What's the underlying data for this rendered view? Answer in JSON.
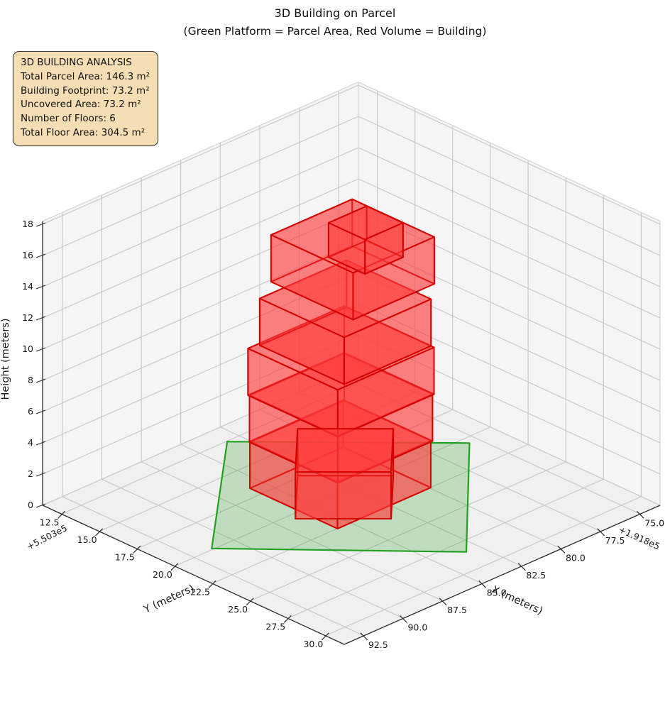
{
  "title": {
    "line1": "3D Building on Parcel",
    "line2": "(Green Platform = Parcel Area, Red Volume = Building)"
  },
  "info_box": {
    "title": "3D BUILDING ANALYSIS",
    "lines": [
      "Total Parcel Area: 146.3 m²",
      "Building Footprint: 73.2 m²",
      "Uncovered Area: 73.2 m²",
      "Number of Floors: 6",
      "Total Floor Area: 304.5 m²"
    ],
    "bg_color": "#f5deb3",
    "border_color": "#3c3c3c",
    "text_color": "#111111"
  },
  "chart_data": {
    "type": "3d-building-plot",
    "title": "3D Building on Parcel",
    "subtitle": "(Green Platform = Parcel Area, Red Volume = Building)",
    "legend_note": "Green Platform = Parcel Area, Red Volume = Building",
    "stats": {
      "total_parcel_area_m2": 146.3,
      "building_footprint_m2": 73.2,
      "uncovered_area_m2": 73.2,
      "number_of_floors": 6,
      "total_floor_area_m2": 304.5
    },
    "axes": {
      "x": {
        "label": "X (meters)",
        "tick_values": [
          75.0,
          77.5,
          80.0,
          82.5,
          85.0,
          87.5,
          90.0,
          92.5
        ],
        "tick_labels": [
          "75.0",
          "77.5",
          "80.0",
          "82.5",
          "85.0",
          "87.5",
          "90.0",
          "92.5"
        ],
        "offset_text": "+1.918e5",
        "range": [
          73.75,
          93.75
        ]
      },
      "y": {
        "label": "Y (meters)",
        "tick_values": [
          12.5,
          15.0,
          17.5,
          20.0,
          22.5,
          25.0,
          27.5,
          30.0
        ],
        "tick_labels": [
          "12.5",
          "15.0",
          "17.5",
          "20.0",
          "22.5",
          "25.0",
          "27.5",
          "30.0"
        ],
        "offset_text": "+5.503e5",
        "range": [
          11.25,
          31.25
        ]
      },
      "z": {
        "label": "Height (meters)",
        "tick_values": [
          0,
          2,
          4,
          6,
          8,
          10,
          12,
          14,
          16,
          18
        ],
        "tick_labels": [
          "0",
          "2",
          "4",
          "6",
          "8",
          "10",
          "12",
          "14",
          "16",
          "18"
        ],
        "range": [
          0,
          18.2
        ]
      }
    },
    "parcel": {
      "name": "parcel-platform",
      "z": 0,
      "polygon_xy": [
        [
          83.3,
          12.55
        ],
        [
          75.55,
          20.5
        ],
        [
          83.3,
          28.4
        ],
        [
          91.3,
          19.9
        ]
      ],
      "fill": "#2ca02c",
      "fill_alpha": 0.25,
      "edge": "#22a022",
      "edge_width": 2.2
    },
    "building": {
      "fill": "#ff3c3c",
      "fill_alpha": 0.4,
      "edge": "#d40000",
      "edge_alpha": 0.92,
      "edge_width": 2,
      "boxes": [
        {
          "name": "floor-1",
          "z0": 0,
          "z1": 3,
          "footprint": [
            [
              85.84,
              22.52
            ],
            [
              85.84,
              16.71
            ],
            [
              79.93,
              16.71
            ],
            [
              79.93,
              22.52
            ]
          ]
        },
        {
          "name": "floor-2",
          "z0": 3,
          "z1": 6,
          "footprint": [
            [
              85.9,
              22.6
            ],
            [
              85.9,
              16.75
            ],
            [
              79.9,
              16.75
            ],
            [
              79.9,
              22.6
            ]
          ]
        },
        {
          "name": "floor-3",
          "z0": 6,
          "z1": 9,
          "footprint": [
            [
              85.95,
              22.65
            ],
            [
              85.95,
              16.7
            ],
            [
              79.85,
              16.7
            ],
            [
              79.85,
              22.65
            ]
          ]
        },
        {
          "name": "floor-4",
          "z0": 9,
          "z1": 12,
          "footprint": [
            [
              85.35,
              22.45
            ],
            [
              85.35,
              16.85
            ],
            [
              79.85,
              16.85
            ],
            [
              79.85,
              22.45
            ]
          ]
        },
        {
          "name": "floor-5",
          "z0": 12,
          "z1": 15,
          "footprint": [
            [
              83.81,
              21.43
            ],
            [
              83.81,
              15.99
            ],
            [
              78.67,
              15.99
            ],
            [
              78.67,
              21.43
            ]
          ]
        },
        {
          "name": "ground-annex",
          "z0": 0,
          "z1": 3,
          "footprint": [
            [
              86.51,
              20.43
            ],
            [
              83.41,
              17.33
            ],
            [
              80.31,
              20.43
            ],
            [
              83.41,
              23.53
            ]
          ]
        },
        {
          "name": "floor-6-penthouse",
          "z0": 15,
          "z1": 17.2,
          "footprint": [
            [
              83.51,
              21.9
            ],
            [
              83.51,
              19.49
            ],
            [
              81.1,
              19.49
            ],
            [
              81.1,
              21.9
            ]
          ]
        }
      ]
    },
    "style": {
      "wall_pane": "#f5f5f5",
      "floor_pane": "#f0f0f0",
      "grid": "#c6c6c6",
      "pane_edge": "#d6d6d6",
      "axis_line": "#2b2b2b",
      "tick_text": "#1a1a1a",
      "background": "#ffffff"
    }
  }
}
